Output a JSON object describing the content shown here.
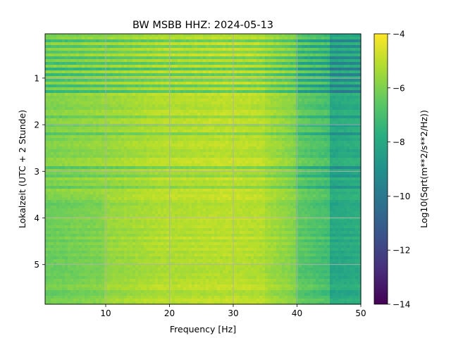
{
  "chart_data": {
    "type": "heatmap",
    "title": "BW MSBB  HHZ: 2024-05-13",
    "xlabel": "Frequency [Hz]",
    "ylabel": "Lokalzeit (UTC + 2 Stunde)",
    "x_range": [
      0.5,
      50
    ],
    "y_range": [
      0.05,
      5.85
    ],
    "y_inverted": true,
    "x_ticks": [
      10,
      20,
      30,
      40,
      50
    ],
    "x_tick_labels": [
      "10",
      "20",
      "30",
      "40",
      "50"
    ],
    "y_ticks": [
      1,
      2,
      3,
      4,
      5
    ],
    "y_tick_labels": [
      "1",
      "2",
      "3",
      "4",
      "5"
    ],
    "grid": true,
    "colormap": "viridis",
    "colorbar": {
      "label": "Log10(Sqrt(m**2/s**2/Hz))",
      "range": [
        -14,
        -4
      ],
      "ticks": [
        -14,
        -12,
        -10,
        -8,
        -6,
        -4
      ],
      "tick_labels": [
        "−14",
        "−12",
        "−10",
        "−8",
        "−6",
        "−4"
      ]
    },
    "approx_levels": {
      "low_freq_1_to_10Hz": -6.0,
      "mid_freq_20_to_35Hz": -5.0,
      "high_freq_40_to_45Hz": -6.5,
      "near_50Hz": -8.0
    }
  }
}
